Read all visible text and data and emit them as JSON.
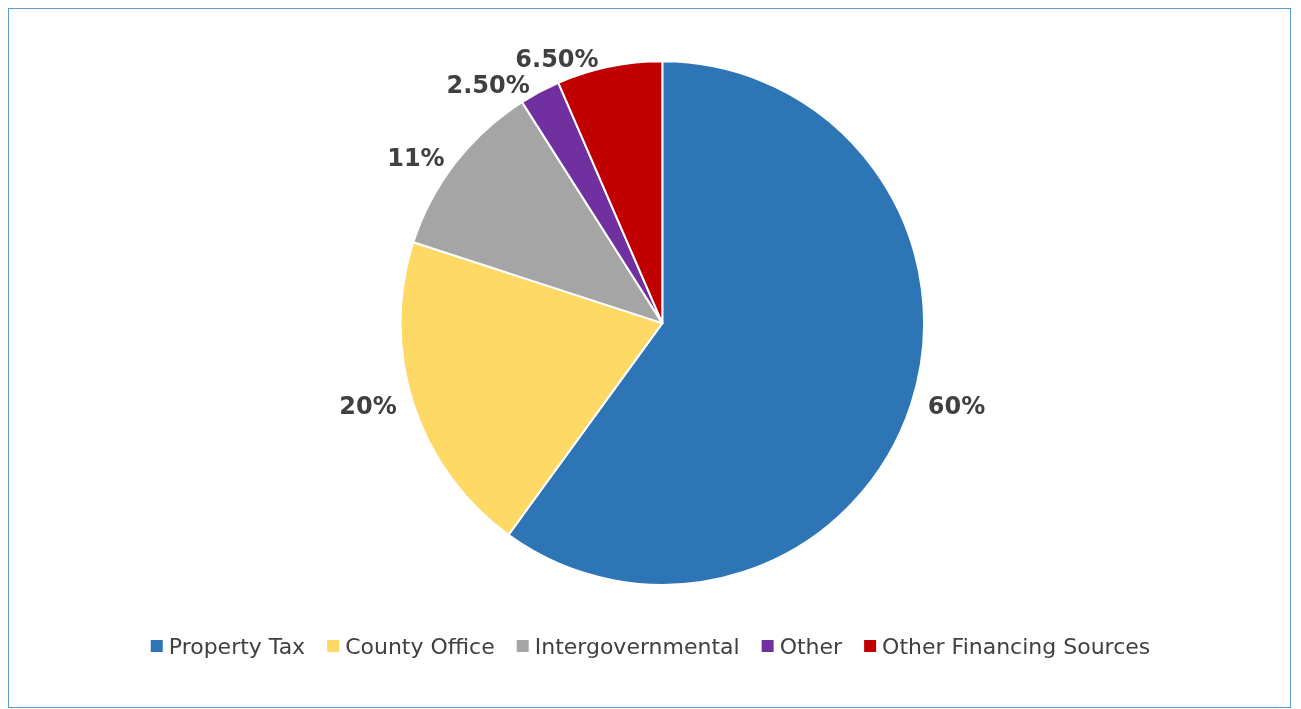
{
  "chart_data": {
    "type": "pie",
    "categories": [
      "Property Tax",
      "County Office",
      "Intergovernmental",
      "Other",
      "Other Financing Sources"
    ],
    "values": [
      60,
      20,
      11,
      2.5,
      6.5
    ],
    "colors": [
      "#2e75b6",
      "#ffd966",
      "#a5a5a5",
      "#7030a0",
      "#c00000"
    ],
    "value_labels": [
      "60%",
      "20%",
      "11%",
      "2.50%",
      "6.50%"
    ],
    "legend": "bottom"
  }
}
